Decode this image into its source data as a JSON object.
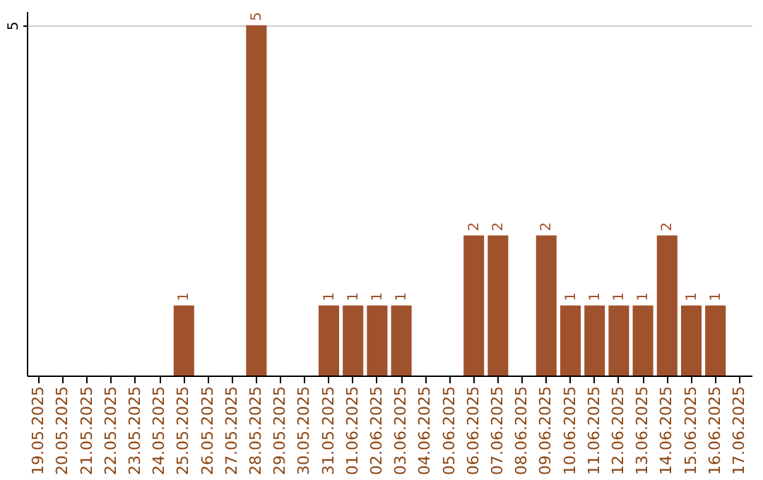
{
  "chart_data": {
    "type": "bar",
    "categories": [
      "19.05.2025",
      "20.05.2025",
      "21.05.2025",
      "22.05.2025",
      "23.05.2025",
      "24.05.2025",
      "25.05.2025",
      "26.05.2025",
      "27.05.2025",
      "28.05.2025",
      "29.05.2025",
      "30.05.2025",
      "31.05.2025",
      "01.06.2025",
      "02.06.2025",
      "03.06.2025",
      "04.06.2025",
      "05.06.2025",
      "06.06.2025",
      "07.06.2025",
      "08.06.2025",
      "09.06.2025",
      "10.06.2025",
      "11.06.2025",
      "12.06.2025",
      "13.06.2025",
      "14.06.2025",
      "15.06.2025",
      "16.06.2025",
      "17.06.2025"
    ],
    "values": [
      null,
      null,
      null,
      null,
      null,
      null,
      1,
      null,
      null,
      5,
      null,
      null,
      1,
      1,
      1,
      1,
      null,
      null,
      2,
      2,
      null,
      2,
      1,
      1,
      1,
      1,
      2,
      1,
      1,
      null
    ],
    "color": "#a0522d",
    "ylim": [
      0,
      5.2
    ],
    "yticks": [
      5
    ],
    "grid": "y",
    "data_labels": true
  }
}
